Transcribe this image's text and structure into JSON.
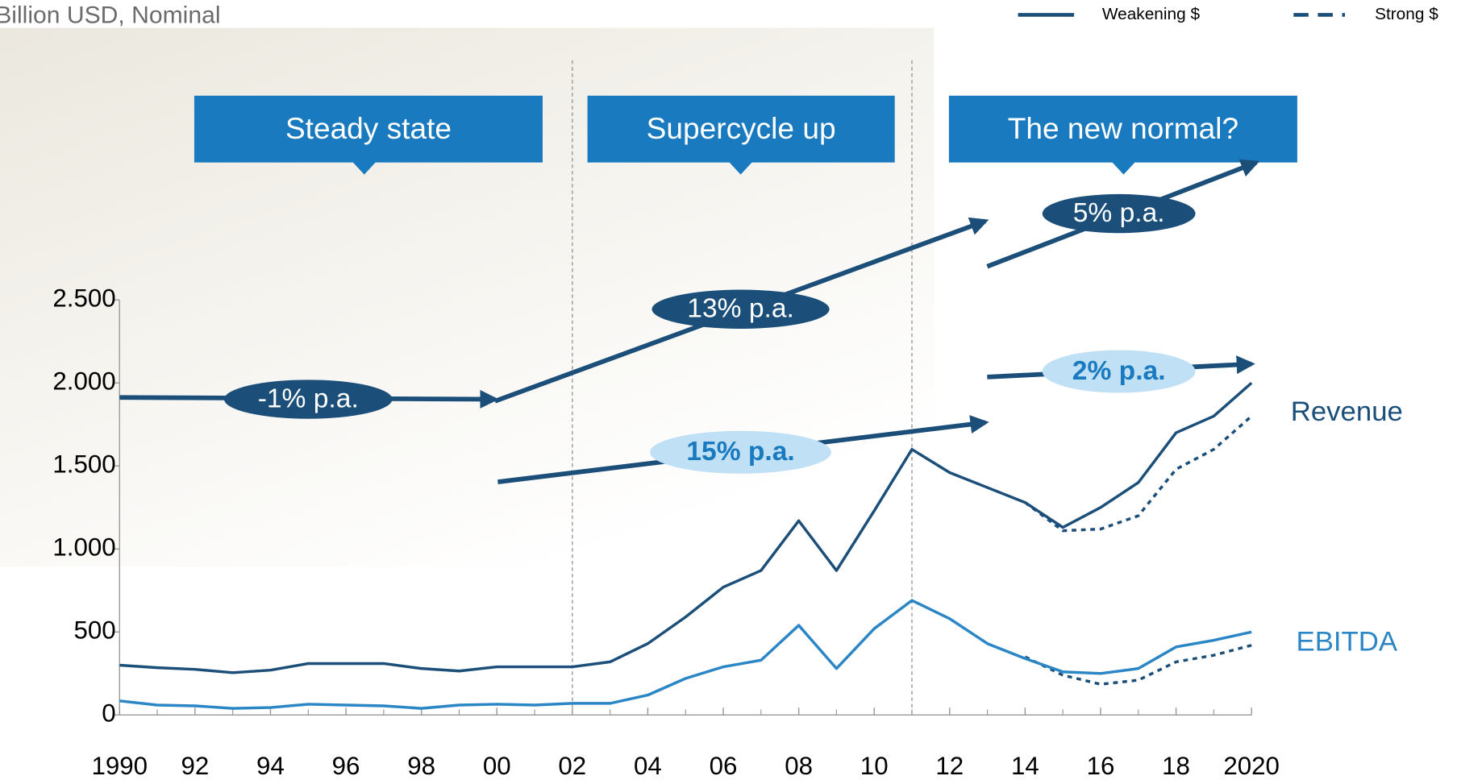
{
  "chart_data": {
    "type": "line",
    "subtitle": "Billion USD, Nominal",
    "x": [
      1990,
      1991,
      1992,
      1993,
      1994,
      1995,
      1996,
      1997,
      1998,
      1999,
      2000,
      2001,
      2002,
      2003,
      2004,
      2005,
      2006,
      2007,
      2008,
      2009,
      2010,
      2011,
      2012,
      2013,
      2014,
      2015,
      2016,
      2017,
      2018,
      2019,
      2020
    ],
    "xlim": [
      1990,
      2020
    ],
    "xticks": [
      {
        "value": 1990,
        "label": "1990"
      },
      {
        "value": 1992,
        "label": "92"
      },
      {
        "value": 1994,
        "label": "94"
      },
      {
        "value": 1996,
        "label": "96"
      },
      {
        "value": 1998,
        "label": "98"
      },
      {
        "value": 2000,
        "label": "00"
      },
      {
        "value": 2002,
        "label": "02"
      },
      {
        "value": 2004,
        "label": "04"
      },
      {
        "value": 2006,
        "label": "06"
      },
      {
        "value": 2008,
        "label": "08"
      },
      {
        "value": 2010,
        "label": "10"
      },
      {
        "value": 2012,
        "label": "12"
      },
      {
        "value": 2014,
        "label": "14"
      },
      {
        "value": 2016,
        "label": "16"
      },
      {
        "value": 2018,
        "label": "18"
      },
      {
        "value": 2020,
        "label": "2020"
      }
    ],
    "ylim": [
      0,
      2500
    ],
    "yticks": [
      0,
      500,
      {
        "value": 1000,
        "label": "1.000"
      },
      {
        "value": 1500,
        "label": "1.500"
      },
      {
        "value": 2000,
        "label": "2.000"
      },
      {
        "value": 2500,
        "label": "2.500"
      }
    ],
    "legend": [
      {
        "name": "Weakening $",
        "dash": "solid"
      },
      {
        "name": "Strong $",
        "dash": "dashed"
      }
    ],
    "series": [
      {
        "name": "Revenue",
        "color": "#1b4f7a",
        "strong_color": "#1b4f7a",
        "values": [
          300,
          285,
          275,
          255,
          270,
          310,
          310,
          310,
          280,
          265,
          290,
          290,
          290,
          320,
          430,
          590,
          770,
          870,
          1170,
          870,
          1230,
          1600,
          1460,
          1370,
          1280,
          1130,
          1250,
          1400,
          1700,
          1800,
          2000
        ],
        "strong_values": [
          null,
          null,
          null,
          null,
          null,
          null,
          null,
          null,
          null,
          null,
          null,
          null,
          null,
          null,
          null,
          null,
          null,
          null,
          null,
          null,
          null,
          null,
          null,
          null,
          1280,
          1110,
          1120,
          1200,
          1480,
          1600,
          1800
        ]
      },
      {
        "name": "EBITDA",
        "color": "#2b86c6",
        "strong_color": "#1b4f7a",
        "values": [
          85,
          60,
          55,
          40,
          45,
          65,
          60,
          55,
          40,
          60,
          65,
          60,
          70,
          70,
          120,
          220,
          290,
          330,
          540,
          280,
          520,
          690,
          580,
          430,
          340,
          260,
          250,
          280,
          410,
          450,
          500
        ],
        "strong_values": [
          null,
          null,
          null,
          null,
          null,
          null,
          null,
          null,
          null,
          null,
          null,
          null,
          null,
          null,
          null,
          null,
          null,
          null,
          null,
          null,
          null,
          null,
          null,
          null,
          350,
          240,
          185,
          210,
          320,
          360,
          420
        ]
      }
    ],
    "phases": [
      "Steady state",
      "Supercycle up",
      "The new normal?"
    ],
    "phase_breaks": [
      2002,
      2011
    ],
    "growth_labels": [
      "-1% p.a.",
      "13% p.a.",
      "5% p.a.",
      "15% p.a.",
      "2% p.a."
    ]
  }
}
